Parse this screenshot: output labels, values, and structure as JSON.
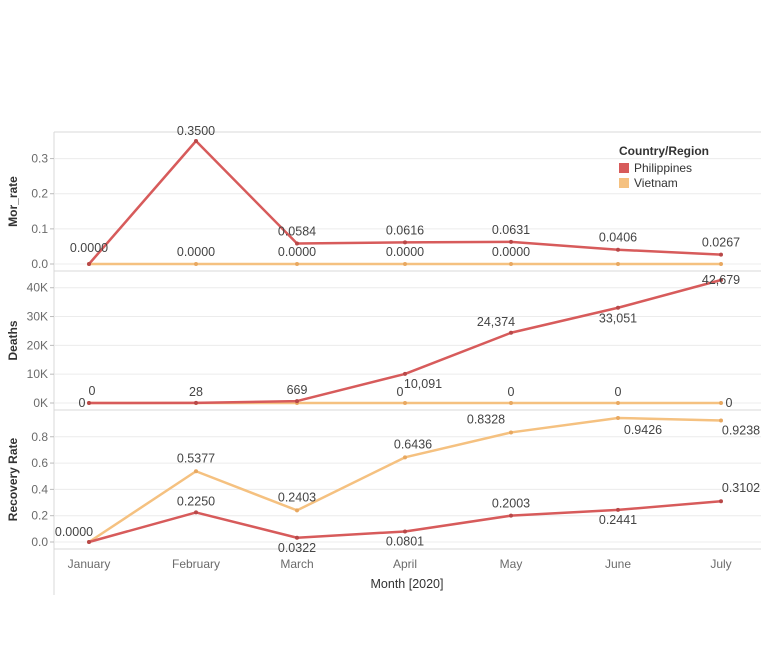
{
  "colors": {
    "philippines": "#d75b5b",
    "vietnam": "#f5c180",
    "panel_border": "#d8d8d8",
    "grid": "#ececec"
  },
  "legend": {
    "title": "Country/Region",
    "items": [
      {
        "label": "Philippines",
        "color": "#d75b5b"
      },
      {
        "label": "Vietnam",
        "color": "#f5c180"
      }
    ],
    "placement": "top-right"
  },
  "chart_data": [
    {
      "type": "line",
      "ylabel": "Mor_rate",
      "categories": [
        "January",
        "February",
        "March",
        "April",
        "May",
        "June",
        "July"
      ],
      "ylim": [
        0,
        0.35
      ],
      "yticks": [
        0,
        0.1,
        0.2,
        0.3
      ],
      "ytick_labels": [
        "0.0",
        "0.1",
        "0.2",
        "0.3"
      ],
      "series": [
        {
          "name": "Philippines",
          "values": [
            0.0,
            0.35,
            0.0584,
            0.0616,
            0.0631,
            0.0406,
            0.0267
          ],
          "labels": [
            "0.0000",
            "0.3500",
            "0.0584",
            "0.0616",
            "0.0631",
            "0.0406",
            "0.0267"
          ]
        },
        {
          "name": "Vietnam",
          "values": [
            0,
            0,
            0,
            0,
            0,
            0,
            0
          ],
          "labels": [
            "",
            "0.0000",
            "0.0000",
            "0.0000",
            "0.0000",
            "",
            ""
          ]
        }
      ]
    },
    {
      "type": "line",
      "ylabel": "Deaths",
      "categories": [
        "January",
        "February",
        "March",
        "April",
        "May",
        "June",
        "July"
      ],
      "ylim": [
        0,
        42679
      ],
      "yticks": [
        0,
        10000,
        20000,
        30000,
        40000
      ],
      "ytick_labels": [
        "0K",
        "10K",
        "20K",
        "30K",
        "40K"
      ],
      "series": [
        {
          "name": "Philippines",
          "values": [
            0,
            28,
            669,
            10091,
            24374,
            33051,
            42679
          ],
          "labels": [
            "0",
            "28",
            "669",
            "10,091",
            "24,374",
            "33,051",
            "42,679"
          ]
        },
        {
          "name": "Vietnam",
          "values": [
            0,
            0,
            0,
            0,
            0,
            0,
            0
          ],
          "labels": [
            "0",
            "",
            "",
            "0",
            "0",
            "0",
            "0"
          ]
        }
      ]
    },
    {
      "type": "line",
      "ylabel": "Recovery Rate",
      "xlabel": "Month [2020]",
      "categories": [
        "January",
        "February",
        "March",
        "April",
        "May",
        "June",
        "July"
      ],
      "ylim": [
        0,
        0.9426
      ],
      "yticks": [
        0,
        0.2,
        0.4,
        0.6,
        0.8
      ],
      "ytick_labels": [
        "0.0",
        "0.2",
        "0.4",
        "0.6",
        "0.8"
      ],
      "series": [
        {
          "name": "Philippines",
          "values": [
            0.0,
            0.225,
            0.0322,
            0.0801,
            0.2003,
            0.2441,
            0.3102
          ],
          "labels": [
            "0.0000",
            "0.2250",
            "0.0322",
            "0.0801",
            "0.2003",
            "0.2441",
            "0.3102"
          ]
        },
        {
          "name": "Vietnam",
          "values": [
            0.0,
            0.5377,
            0.2403,
            0.6436,
            0.8328,
            0.9426,
            0.9238
          ],
          "labels": [
            "",
            "0.5377",
            "0.2403",
            "0.6436",
            "0.8328",
            "0.9426",
            "0.9238"
          ]
        }
      ]
    }
  ]
}
